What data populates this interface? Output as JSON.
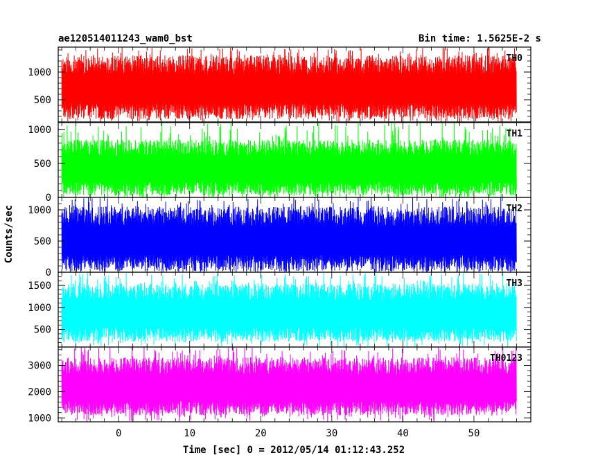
{
  "chart_data": {
    "type": "line",
    "title_left": "ae120514011243_wam0_bst",
    "title_right": "Bin time: 1.5625E-2 s",
    "xlabel": "Time [sec] 0 = 2012/05/14 01:12:43.252",
    "ylabel": "Counts/sec",
    "xlim": [
      -8.5,
      58
    ],
    "xticks": [
      0,
      10,
      20,
      30,
      40,
      50
    ],
    "x_start": -8,
    "x_end": 56,
    "panels": [
      {
        "name": "TH0",
        "color": "#ff0000",
        "ylim": [
          100,
          1450
        ],
        "yticks": [
          500,
          1000
        ],
        "low": 150,
        "high": 1300,
        "spike": 1450,
        "floor": 100
      },
      {
        "name": "TH1",
        "color": "#00ff00",
        "ylim": [
          0,
          1100
        ],
        "yticks": [
          0,
          500,
          1000
        ],
        "low": 30,
        "high": 850,
        "spike": 1100,
        "floor": 0
      },
      {
        "name": "TH2",
        "color": "#0000ff",
        "ylim": [
          0,
          1200
        ],
        "yticks": [
          0,
          500,
          1000
        ],
        "low": 20,
        "high": 1050,
        "spike": 1200,
        "floor": 0
      },
      {
        "name": "TH3",
        "color": "#00ffff",
        "ylim": [
          100,
          1800
        ],
        "yticks": [
          500,
          1000,
          1500
        ],
        "low": 220,
        "high": 1550,
        "spike": 1800,
        "floor": 100
      },
      {
        "name": "TH0123",
        "color": "#ff00ff",
        "ylim": [
          850,
          3700
        ],
        "yticks": [
          1000,
          2000,
          3000
        ],
        "low": 1100,
        "high": 3300,
        "spike": 3700,
        "floor": 850
      }
    ]
  }
}
